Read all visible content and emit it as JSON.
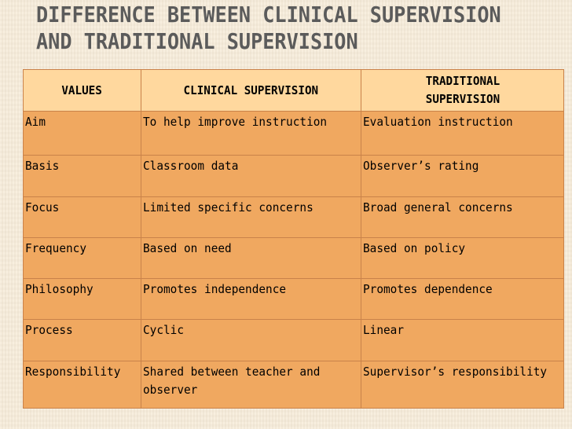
{
  "slide": {
    "title_line1": "DIFFERENCE BETWEEN CLINICAL SUPERVISION",
    "title_line2": "AND TRADITIONAL SUPERVISION"
  },
  "table": {
    "headers": [
      "VALUES",
      "CLINICAL SUPERVISION",
      "TRADITIONAL SUPERVISION"
    ],
    "rows": [
      {
        "value": "Aim",
        "clinical": "To help improve instruction",
        "traditional": "Evaluation instruction"
      },
      {
        "value": "Basis",
        "clinical": "Classroom data",
        "traditional": "Observer’s rating"
      },
      {
        "value": "Focus",
        "clinical": "Limited specific concerns",
        "traditional": "Broad general concerns"
      },
      {
        "value": "Frequency",
        "clinical": "Based on need",
        "traditional": "Based on policy"
      },
      {
        "value": "Philosophy",
        "clinical": "Promotes independence",
        "traditional": "Promotes dependence"
      },
      {
        "value": "Process",
        "clinical": "Cyclic",
        "traditional": "Linear"
      },
      {
        "value": "Responsibility",
        "clinical": "Shared between teacher and observer",
        "traditional": "Supervisor’s responsibility"
      }
    ]
  },
  "colors": {
    "background": "#f7ecd9",
    "header_fill": "#ffd89e",
    "row_fill": "#f0a860",
    "title_text": "#5b5b5b"
  }
}
